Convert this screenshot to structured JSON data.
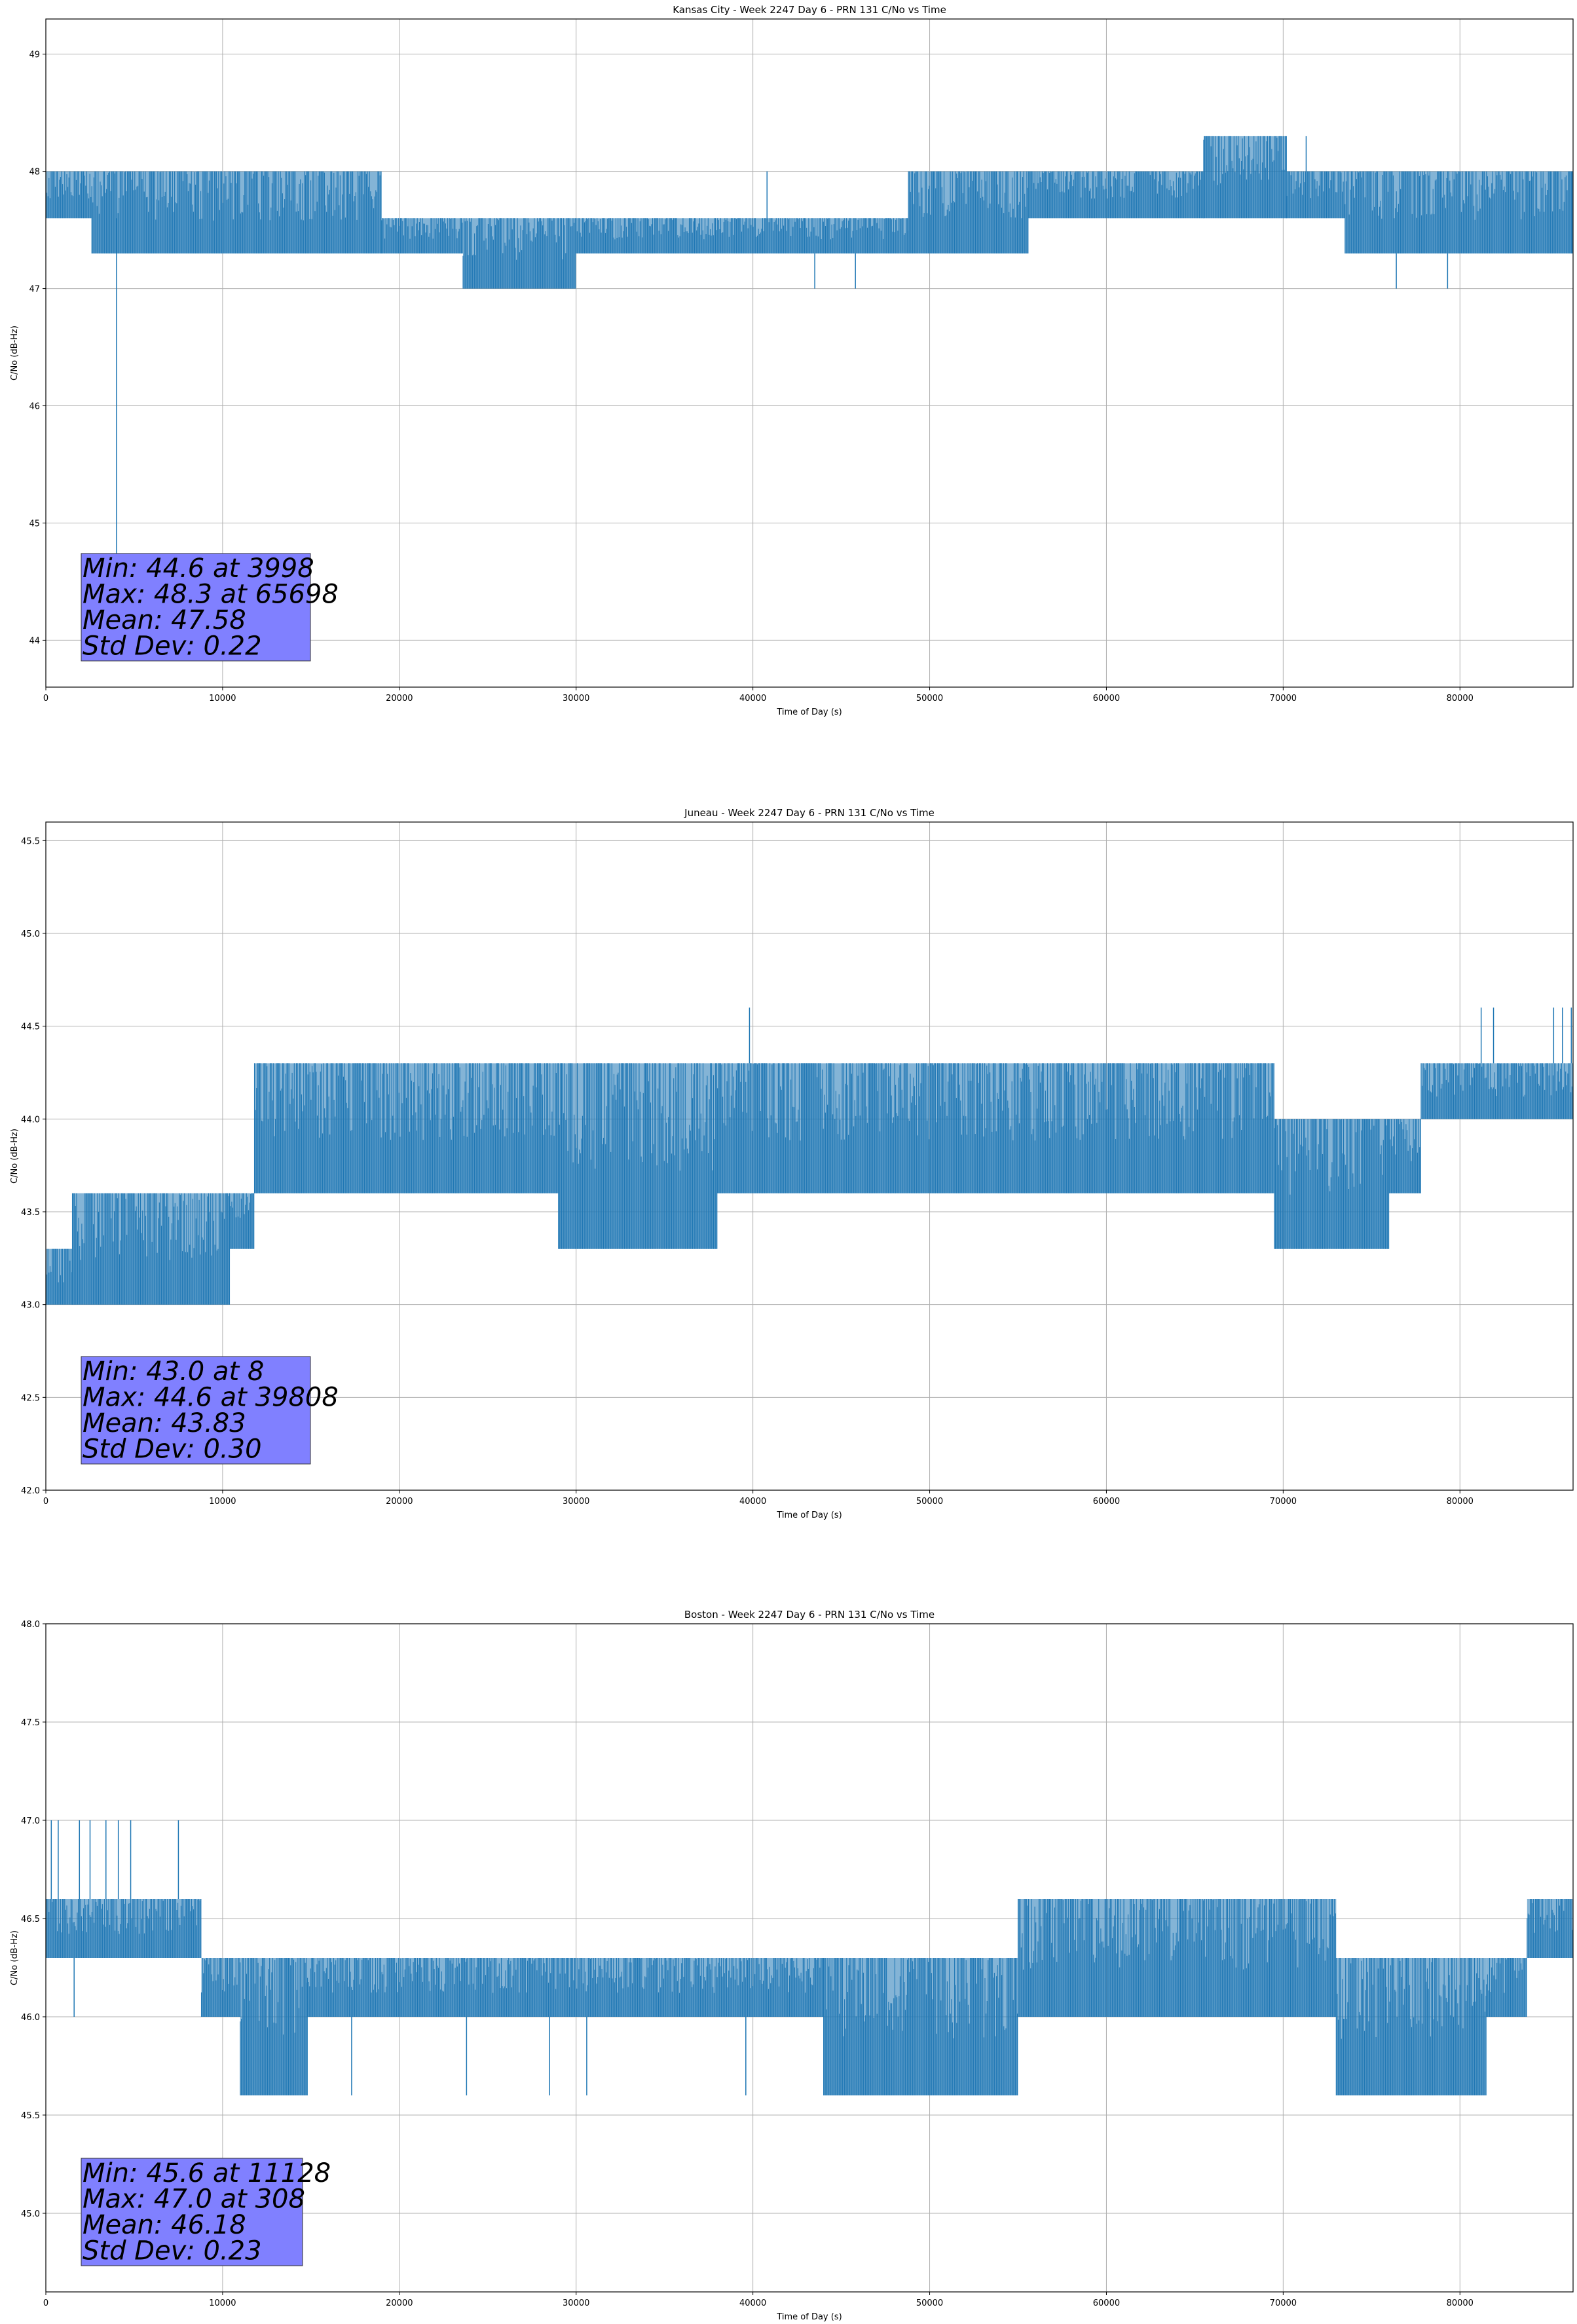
{
  "chart_data": [
    {
      "type": "line",
      "title": "Kansas City - Week 2247 Day 6 - PRN 131 C/No vs Time",
      "xlabel": "Time of Day (s)",
      "ylabel": "C/No (dB-Hz)",
      "xlim": [
        0,
        86400
      ],
      "ylim": [
        43.6,
        49.3
      ],
      "xticks": [
        0,
        10000,
        20000,
        30000,
        40000,
        50000,
        60000,
        70000,
        80000
      ],
      "yticks": [
        44,
        45,
        46,
        47,
        48,
        49
      ],
      "grid": true,
      "color": "#1f77b4",
      "series": [
        {
          "name": "C/No",
          "segments": [
            {
              "x0": 0,
              "x1": 2600,
              "lo": 47.6,
              "hi": 48.0
            },
            {
              "x0": 2600,
              "x1": 19000,
              "lo": 47.3,
              "hi": 48.0
            },
            {
              "x0": 19000,
              "x1": 23600,
              "lo": 47.3,
              "hi": 47.6
            },
            {
              "x0": 23600,
              "x1": 30000,
              "lo": 47.0,
              "hi": 47.6
            },
            {
              "x0": 30000,
              "x1": 48800,
              "lo": 47.3,
              "hi": 47.6
            },
            {
              "x0": 48800,
              "x1": 55600,
              "lo": 47.3,
              "hi": 48.0
            },
            {
              "x0": 55600,
              "x1": 65500,
              "lo": 47.6,
              "hi": 48.0
            },
            {
              "x0": 65500,
              "x1": 70200,
              "lo": 47.6,
              "hi": 48.3
            },
            {
              "x0": 70200,
              "x1": 73500,
              "lo": 47.6,
              "hi": 48.0
            },
            {
              "x0": 73500,
              "x1": 86400,
              "lo": 47.3,
              "hi": 48.0
            }
          ],
          "spikes": [
            {
              "x": 3998,
              "y0": 44.6,
              "y1": 47.6
            },
            {
              "x": 40800,
              "y0": 47.6,
              "y1": 48.0
            },
            {
              "x": 43500,
              "y0": 47.0,
              "y1": 47.3
            },
            {
              "x": 45800,
              "y0": 47.0,
              "y1": 47.3
            },
            {
              "x": 76400,
              "y0": 47.0,
              "y1": 47.3
            },
            {
              "x": 79300,
              "y0": 47.0,
              "y1": 47.3
            },
            {
              "x": 71300,
              "y0": 48.0,
              "y1": 48.3
            }
          ]
        }
      ],
      "stats": [
        "Min: 44.6 at 3998",
        "Max: 48.3 at 65698",
        "Mean: 47.58",
        "Std Dev: 0.22"
      ]
    },
    {
      "type": "line",
      "title": "Juneau - Week 2247 Day 6 - PRN 131 C/No vs Time",
      "xlabel": "Time of Day (s)",
      "ylabel": "C/No (dB-Hz)",
      "xlim": [
        0,
        86400
      ],
      "ylim": [
        42.0,
        45.6
      ],
      "xticks": [
        0,
        10000,
        20000,
        30000,
        40000,
        50000,
        60000,
        70000,
        80000
      ],
      "yticks": [
        42.0,
        42.5,
        43.0,
        43.5,
        44.0,
        44.5,
        45.0,
        45.5
      ],
      "grid": true,
      "color": "#1f77b4",
      "series": [
        {
          "name": "C/No",
          "segments": [
            {
              "x0": 0,
              "x1": 1500,
              "lo": 43.0,
              "hi": 43.3
            },
            {
              "x0": 1500,
              "x1": 10400,
              "lo": 43.0,
              "hi": 43.6
            },
            {
              "x0": 10400,
              "x1": 11800,
              "lo": 43.3,
              "hi": 43.6
            },
            {
              "x0": 11800,
              "x1": 29000,
              "lo": 43.6,
              "hi": 44.3
            },
            {
              "x0": 29000,
              "x1": 38000,
              "lo": 43.3,
              "hi": 44.3
            },
            {
              "x0": 38000,
              "x1": 69500,
              "lo": 43.6,
              "hi": 44.3
            },
            {
              "x0": 69500,
              "x1": 76000,
              "lo": 43.3,
              "hi": 44.0
            },
            {
              "x0": 76000,
              "x1": 77800,
              "lo": 43.6,
              "hi": 44.0
            },
            {
              "x0": 77800,
              "x1": 86400,
              "lo": 44.0,
              "hi": 44.3
            }
          ],
          "spikes": [
            {
              "x": 39808,
              "y0": 44.3,
              "y1": 44.6
            },
            {
              "x": 81200,
              "y0": 44.3,
              "y1": 44.6
            },
            {
              "x": 81900,
              "y0": 44.3,
              "y1": 44.6
            },
            {
              "x": 85300,
              "y0": 44.3,
              "y1": 44.6
            },
            {
              "x": 85800,
              "y0": 44.3,
              "y1": 44.6
            },
            {
              "x": 86300,
              "y0": 44.3,
              "y1": 44.6
            }
          ]
        }
      ],
      "stats": [
        "Min: 43.0 at 8",
        "Max: 44.6 at 39808",
        "Mean: 43.83",
        "Std Dev: 0.30"
      ]
    },
    {
      "type": "line",
      "title": "Boston - Week 2247 Day 6 - PRN 131 C/No vs Time",
      "xlabel": "Time of Day (s)",
      "ylabel": "C/No (dB-Hz)",
      "xlim": [
        0,
        86400
      ],
      "ylim": [
        44.6,
        48.0
      ],
      "xticks": [
        0,
        10000,
        20000,
        30000,
        40000,
        50000,
        60000,
        70000,
        80000
      ],
      "yticks": [
        45.0,
        45.5,
        46.0,
        46.5,
        47.0,
        47.5,
        48.0
      ],
      "grid": true,
      "color": "#1f77b4",
      "series": [
        {
          "name": "C/No",
          "segments": [
            {
              "x0": 0,
              "x1": 8800,
              "lo": 46.3,
              "hi": 46.6
            },
            {
              "x0": 8800,
              "x1": 11000,
              "lo": 46.0,
              "hi": 46.3
            },
            {
              "x0": 11000,
              "x1": 14800,
              "lo": 45.6,
              "hi": 46.3
            },
            {
              "x0": 14800,
              "x1": 44000,
              "lo": 46.0,
              "hi": 46.3
            },
            {
              "x0": 44000,
              "x1": 55000,
              "lo": 45.6,
              "hi": 46.3
            },
            {
              "x0": 55000,
              "x1": 73000,
              "lo": 46.0,
              "hi": 46.6
            },
            {
              "x0": 73000,
              "x1": 81500,
              "lo": 45.6,
              "hi": 46.3
            },
            {
              "x0": 81500,
              "x1": 83800,
              "lo": 46.0,
              "hi": 46.3
            },
            {
              "x0": 83800,
              "x1": 86400,
              "lo": 46.3,
              "hi": 46.6
            }
          ],
          "spikes": [
            {
              "x": 308,
              "y0": 46.6,
              "y1": 47.0
            },
            {
              "x": 700,
              "y0": 46.6,
              "y1": 47.0
            },
            {
              "x": 1900,
              "y0": 46.6,
              "y1": 47.0
            },
            {
              "x": 2500,
              "y0": 46.6,
              "y1": 47.0
            },
            {
              "x": 3400,
              "y0": 46.6,
              "y1": 47.0
            },
            {
              "x": 4100,
              "y0": 46.6,
              "y1": 47.0
            },
            {
              "x": 4800,
              "y0": 46.6,
              "y1": 47.0
            },
            {
              "x": 7500,
              "y0": 46.6,
              "y1": 47.0
            },
            {
              "x": 1600,
              "y0": 46.0,
              "y1": 46.3
            },
            {
              "x": 17300,
              "y0": 45.6,
              "y1": 46.0
            },
            {
              "x": 23800,
              "y0": 45.6,
              "y1": 46.0
            },
            {
              "x": 28500,
              "y0": 45.6,
              "y1": 46.0
            },
            {
              "x": 30600,
              "y0": 45.6,
              "y1": 46.0
            },
            {
              "x": 39600,
              "y0": 45.6,
              "y1": 46.0
            }
          ]
        }
      ],
      "stats": [
        "Min: 45.6 at 11128",
        "Max: 47.0 at 308",
        "Mean: 46.18",
        "Std Dev: 0.23"
      ]
    }
  ]
}
